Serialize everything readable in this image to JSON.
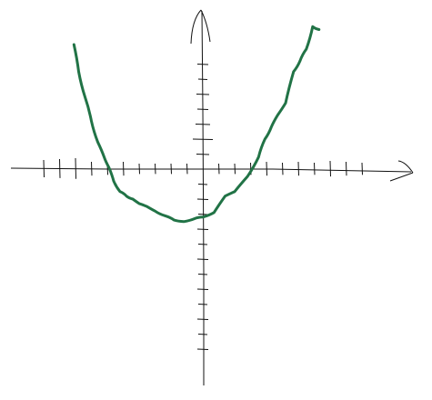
{
  "chart_data": {
    "type": "line",
    "title": "",
    "xlabel": "",
    "ylabel": "",
    "grid": false,
    "legend": "none",
    "axes_style": "hand-drawn with tick marks and arrowheads, no numeric labels",
    "xlim": [
      -12,
      13
    ],
    "ylim": [
      -13,
      10
    ],
    "x_ticks": [
      -10,
      -9,
      -8,
      -7,
      -6,
      -5,
      -4,
      -3,
      -2,
      -1,
      1,
      2,
      3,
      4,
      5,
      6,
      7,
      8,
      9,
      10
    ],
    "y_ticks": [
      -12,
      -11,
      -10,
      -9,
      -8,
      -7,
      -6,
      -5,
      -4,
      -3,
      -2,
      -1,
      1,
      2,
      3,
      4,
      5,
      6,
      7
    ],
    "series": [
      {
        "color": "#217346",
        "x": [
          -8.1,
          -7.8,
          -7.4,
          -7.0,
          -6.6,
          -6.2,
          -5.9,
          -5.6,
          -5.2,
          -4.8,
          -4.4,
          -4.0,
          -3.5,
          -3.0,
          -2.4,
          -1.8,
          -1.2,
          -0.5,
          0.0,
          0.7,
          1.4,
          2.0,
          2.8,
          3.5,
          3.9,
          4.3,
          4.7,
          5.2,
          5.7,
          6.1,
          6.5,
          6.9,
          7.3
        ],
        "y": [
          8.3,
          6.5,
          4.8,
          3.2,
          1.8,
          0.8,
          0.1,
          -0.8,
          -1.5,
          -1.8,
          -2.0,
          -2.3,
          -2.5,
          -2.8,
          -3.1,
          -3.4,
          -3.5,
          -3.3,
          -3.2,
          -2.9,
          -1.8,
          -1.5,
          -0.5,
          0.8,
          2.0,
          2.8,
          3.6,
          4.4,
          6.5,
          7.2,
          8.0,
          9.5,
          9.3
        ]
      }
    ]
  },
  "style": {
    "axis_color": "#111111",
    "background": "#ffffff"
  }
}
